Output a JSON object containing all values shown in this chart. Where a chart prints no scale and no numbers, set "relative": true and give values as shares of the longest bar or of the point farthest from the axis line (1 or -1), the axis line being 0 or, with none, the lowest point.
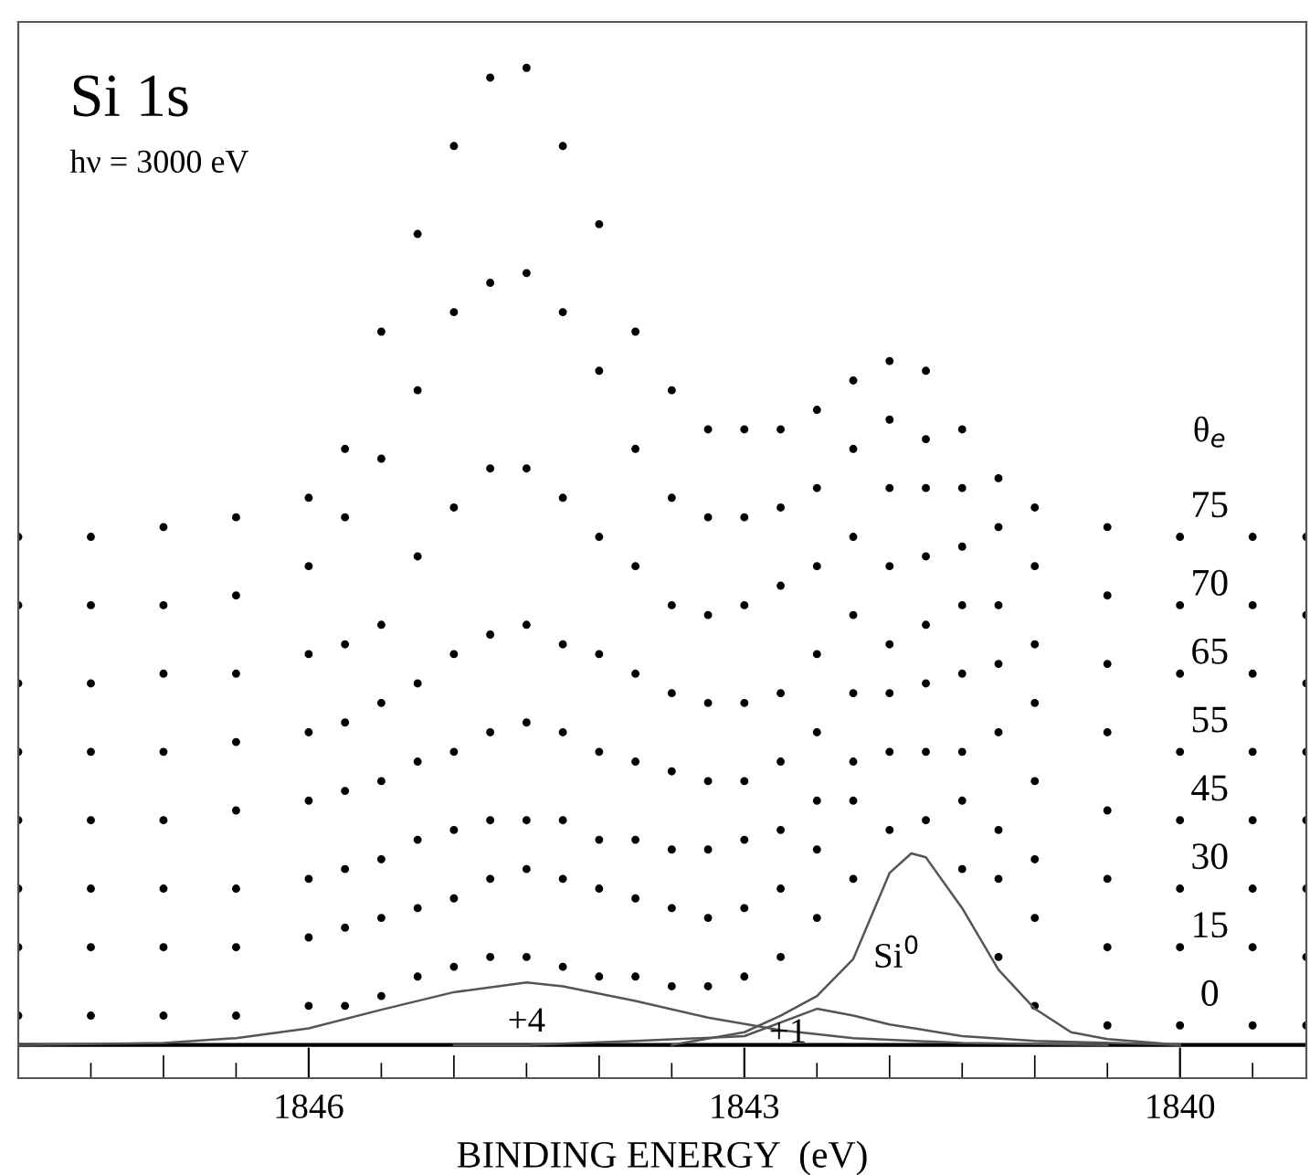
{
  "chart_data": {
    "type": "scatter",
    "title": "Si 1s",
    "subtitle": "hν = 3000 eV",
    "xlabel": "BINDING ENERGY  (eV)",
    "legend_title": "θ$_{e}$",
    "relative": true,
    "marker": "circle",
    "legend": false,
    "grid": false,
    "tick_labels": "x",
    "xlim": [
      1848,
      1839.13
    ],
    "xticks": [
      {
        "value": 1847.5,
        "label": null
      },
      {
        "value": 1847,
        "label": null
      },
      {
        "value": 1846.5,
        "label": null
      },
      1846,
      {
        "value": 1845.5,
        "label": null
      },
      {
        "value": 1845,
        "label": null
      },
      {
        "value": 1844.5,
        "label": null
      },
      {
        "value": 1844,
        "label": null
      },
      {
        "value": 1843.5,
        "label": null
      },
      1843,
      {
        "value": 1842.5,
        "label": null
      },
      {
        "value": 1842,
        "label": null
      },
      {
        "value": 1841.5,
        "label": null
      },
      {
        "value": 1841,
        "label": null
      },
      {
        "value": 1840.5,
        "label": null
      },
      1840,
      {
        "value": 1839.5,
        "label": null
      }
    ],
    "x": [
      1848,
      1847.5,
      1847,
      1846.5,
      1846,
      1845.75,
      1845.5,
      1845.25,
      1845,
      1844.75,
      1844.5,
      1844.25,
      1844,
      1843.75,
      1843.5,
      1843.25,
      1843,
      1842.75,
      1842.5,
      1842.25,
      1842,
      1841.75,
      1841.5,
      1841.25,
      1841,
      1840.5,
      1840,
      1839.5,
      1839.13
    ],
    "ref_lines": [
      {
        "axis": "y",
        "value": 0,
        "color": "#000000"
      }
    ],
    "series": [
      {
        "name": "75",
        "color": "#000000",
        "values": [
          0.52,
          0.52,
          0.53,
          0.54,
          0.56,
          0.61,
          0.73,
          0.83,
          0.92,
          0.99,
          1.0,
          0.92,
          0.84,
          0.73,
          0.67,
          0.63,
          0.63,
          0.63,
          0.65,
          0.68,
          0.7,
          0.69,
          0.63,
          0.58,
          0.55,
          0.53,
          0.52,
          0.52,
          0.52
        ]
      },
      {
        "name": "70",
        "color": "#000000",
        "values": [
          0.45,
          0.45,
          0.45,
          0.46,
          0.49,
          0.54,
          0.6,
          0.67,
          0.75,
          0.78,
          0.79,
          0.75,
          0.69,
          0.61,
          0.56,
          0.54,
          0.54,
          0.55,
          0.57,
          0.61,
          0.64,
          0.62,
          0.57,
          0.53,
          0.49,
          0.46,
          0.45,
          0.45,
          0.44
        ]
      },
      {
        "name": "65",
        "color": "#000000",
        "values": [
          0.37,
          0.37,
          0.38,
          0.38,
          0.4,
          0.41,
          0.43,
          0.5,
          0.55,
          0.59,
          0.59,
          0.56,
          0.52,
          0.49,
          0.45,
          0.44,
          0.45,
          0.47,
          0.49,
          0.52,
          0.57,
          0.57,
          0.51,
          0.45,
          0.41,
          0.39,
          0.38,
          0.38,
          0.37
        ]
      },
      {
        "name": "55",
        "color": "#000000",
        "values": [
          0.3,
          0.3,
          0.3,
          0.31,
          0.32,
          0.33,
          0.35,
          0.37,
          0.4,
          0.42,
          0.43,
          0.41,
          0.4,
          0.38,
          0.36,
          0.35,
          0.35,
          0.36,
          0.4,
          0.44,
          0.49,
          0.5,
          0.45,
          0.39,
          0.35,
          0.32,
          0.3,
          0.3,
          0.3
        ]
      },
      {
        "name": "45",
        "color": "#000000",
        "values": [
          0.23,
          0.23,
          0.23,
          0.24,
          0.25,
          0.26,
          0.27,
          0.29,
          0.3,
          0.32,
          0.33,
          0.32,
          0.3,
          0.29,
          0.28,
          0.27,
          0.27,
          0.29,
          0.32,
          0.36,
          0.41,
          0.43,
          0.38,
          0.32,
          0.27,
          0.24,
          0.23,
          0.23,
          0.23
        ]
      },
      {
        "name": "30",
        "color": "#000000",
        "values": [
          0.16,
          0.16,
          0.16,
          0.16,
          0.17,
          0.18,
          0.19,
          0.21,
          0.22,
          0.23,
          0.23,
          0.23,
          0.21,
          0.21,
          0.2,
          0.2,
          0.21,
          0.22,
          0.25,
          0.29,
          0.36,
          0.37,
          0.3,
          0.22,
          0.19,
          0.17,
          0.16,
          0.16,
          0.16
        ]
      },
      {
        "name": "15",
        "color": "#000000",
        "values": [
          0.1,
          0.1,
          0.1,
          0.1,
          0.11,
          0.12,
          0.13,
          0.14,
          0.15,
          0.17,
          0.18,
          0.17,
          0.16,
          0.15,
          0.14,
          0.13,
          0.14,
          0.16,
          0.2,
          0.25,
          0.3,
          0.3,
          0.25,
          0.17,
          0.13,
          0.1,
          0.1,
          0.1,
          0.09
        ]
      },
      {
        "name": "0",
        "color": "#000000",
        "values": [
          0.03,
          0.03,
          0.03,
          0.03,
          0.04,
          0.04,
          0.05,
          0.07,
          0.08,
          0.09,
          0.09,
          0.08,
          0.07,
          0.07,
          0.06,
          0.06,
          0.07,
          0.09,
          0.13,
          0.17,
          0.22,
          0.23,
          0.18,
          0.09,
          0.04,
          0.02,
          0.02,
          0.02,
          0.02
        ]
      },
      {
        "type": "line",
        "marker": "none",
        "color": "#555555",
        "line_style": "solid",
        "x": [
          1848,
          1847,
          1846.5,
          1846,
          1845.5,
          1845,
          1844.5,
          1844.25,
          1843.75,
          1843.25,
          1842.75,
          1842.25,
          1841.5,
          1840.5
        ],
        "values": [
          0.0,
          0.002,
          0.007,
          0.017,
          0.036,
          0.054,
          0.064,
          0.06,
          0.045,
          0.028,
          0.015,
          0.007,
          0.002,
          0.0
        ]
      },
      {
        "type": "line",
        "marker": "none",
        "color": "#555555",
        "line_style": "solid",
        "x": [
          1845,
          1844.5,
          1843.75,
          1843,
          1842.5,
          1842.25,
          1842,
          1841.75,
          1841.5,
          1841,
          1840
        ],
        "values": [
          0.0,
          0.0,
          0.004,
          0.009,
          0.037,
          0.03,
          0.021,
          0.015,
          0.009,
          0.004,
          0.0
        ]
      },
      {
        "type": "line",
        "marker": "none",
        "color": "#555555",
        "line_style": "solid",
        "x": [
          1843.5,
          1843,
          1842.75,
          1842.5,
          1842.25,
          1842,
          1841.85,
          1841.75,
          1841.5,
          1841.25,
          1841,
          1840.75,
          1840.5,
          1840
        ],
        "values": [
          0.0,
          0.013,
          0.03,
          0.05,
          0.088,
          0.176,
          0.196,
          0.192,
          0.14,
          0.077,
          0.037,
          0.013,
          0.006,
          0.0
        ]
      }
    ],
    "annotations": [
      "+4",
      "+1",
      "Si$^{0}$"
    ]
  }
}
